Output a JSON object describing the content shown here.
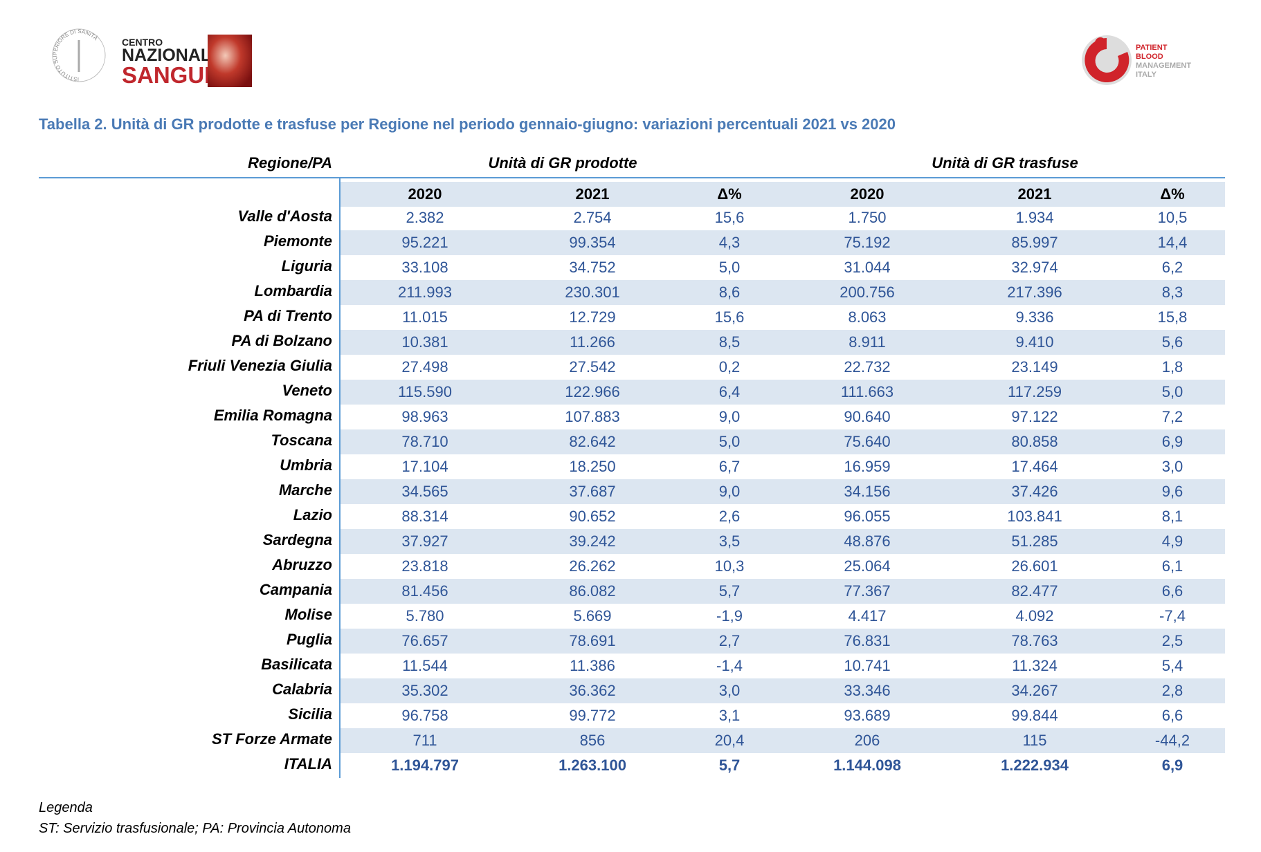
{
  "header": {
    "left_logo": {
      "seal": "ISTITUTO SUPERIORE DI SANITÀ",
      "line1": "CENTRO",
      "line2": "NAZIONALE",
      "line3": "SANGUE"
    },
    "right_logo": {
      "line1": "PATIENT",
      "line2": "BLOOD",
      "line3": "MANAGEMENT",
      "line4": "ITALY"
    }
  },
  "title": "Tabella 2. Unità di GR prodotte e trasfuse per Regione nel periodo gennaio-giugno: variazioni percentuali 2021 vs 2020",
  "table": {
    "group_headers": [
      "Regione/PA",
      "Unità di GR prodotte",
      "Unità di GR trasfuse"
    ],
    "columns": [
      "2020",
      "2021",
      "Δ%",
      "2020",
      "2021",
      "Δ%"
    ],
    "rows": [
      [
        "Valle d'Aosta",
        "2.382",
        "2.754",
        "15,6",
        "1.750",
        "1.934",
        "10,5"
      ],
      [
        "Piemonte",
        "95.221",
        "99.354",
        "4,3",
        "75.192",
        "85.997",
        "14,4"
      ],
      [
        "Liguria",
        "33.108",
        "34.752",
        "5,0",
        "31.044",
        "32.974",
        "6,2"
      ],
      [
        "Lombardia",
        "211.993",
        "230.301",
        "8,6",
        "200.756",
        "217.396",
        "8,3"
      ],
      [
        "PA di Trento",
        "11.015",
        "12.729",
        "15,6",
        "8.063",
        "9.336",
        "15,8"
      ],
      [
        "PA di Bolzano",
        "10.381",
        "11.266",
        "8,5",
        "8.911",
        "9.410",
        "5,6"
      ],
      [
        "Friuli Venezia Giulia",
        "27.498",
        "27.542",
        "0,2",
        "22.732",
        "23.149",
        "1,8"
      ],
      [
        "Veneto",
        "115.590",
        "122.966",
        "6,4",
        "111.663",
        "117.259",
        "5,0"
      ],
      [
        "Emilia Romagna",
        "98.963",
        "107.883",
        "9,0",
        "90.640",
        "97.122",
        "7,2"
      ],
      [
        "Toscana",
        "78.710",
        "82.642",
        "5,0",
        "75.640",
        "80.858",
        "6,9"
      ],
      [
        "Umbria",
        "17.104",
        "18.250",
        "6,7",
        "16.959",
        "17.464",
        "3,0"
      ],
      [
        "Marche",
        "34.565",
        "37.687",
        "9,0",
        "34.156",
        "37.426",
        "9,6"
      ],
      [
        "Lazio",
        "88.314",
        "90.652",
        "2,6",
        "96.055",
        "103.841",
        "8,1"
      ],
      [
        "Sardegna",
        "37.927",
        "39.242",
        "3,5",
        "48.876",
        "51.285",
        "4,9"
      ],
      [
        "Abruzzo",
        "23.818",
        "26.262",
        "10,3",
        "25.064",
        "26.601",
        "6,1"
      ],
      [
        "Campania",
        "81.456",
        "86.082",
        "5,7",
        "77.367",
        "82.477",
        "6,6"
      ],
      [
        "Molise",
        "5.780",
        "5.669",
        "-1,9",
        "4.417",
        "4.092",
        "-7,4"
      ],
      [
        "Puglia",
        "76.657",
        "78.691",
        "2,7",
        "76.831",
        "78.763",
        "2,5"
      ],
      [
        "Basilicata",
        "11.544",
        "11.386",
        "-1,4",
        "10.741",
        "11.324",
        "5,4"
      ],
      [
        "Calabria",
        "35.302",
        "36.362",
        "3,0",
        "33.346",
        "34.267",
        "2,8"
      ],
      [
        "Sicilia",
        "96.758",
        "99.772",
        "3,1",
        "93.689",
        "99.844",
        "6,6"
      ],
      [
        "ST Forze Armate",
        "711",
        "856",
        "20,4",
        "206",
        "115",
        "-44,2"
      ],
      [
        "ITALIA",
        "1.194.797",
        "1.263.100",
        "5,7",
        "1.144.098",
        "1.222.934",
        "6,9"
      ]
    ]
  },
  "legend": {
    "title": "Legenda",
    "text": "ST: Servizio trasfusionale; PA: Provincia Autonoma"
  }
}
